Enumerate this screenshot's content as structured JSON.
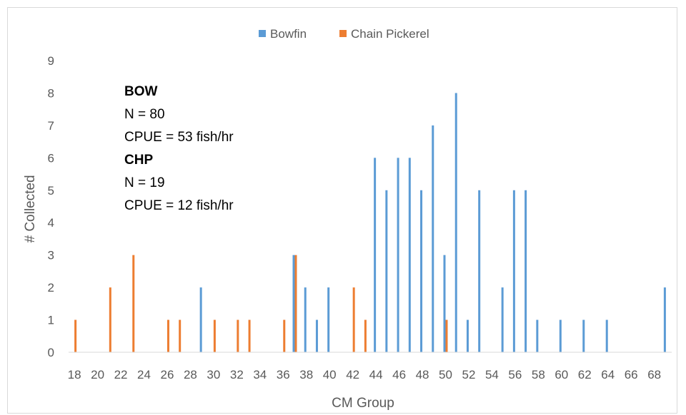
{
  "chart_data": {
    "type": "bar",
    "xlabel": "CM Group",
    "ylabel": "# Collected",
    "ylim": [
      0,
      9
    ],
    "yticks": [
      0,
      1,
      2,
      3,
      4,
      5,
      6,
      7,
      8,
      9
    ],
    "xlim": [
      17.5,
      69.5
    ],
    "xticks": [
      18,
      20,
      22,
      24,
      26,
      28,
      30,
      32,
      34,
      36,
      38,
      40,
      42,
      44,
      46,
      48,
      50,
      52,
      54,
      56,
      58,
      60,
      62,
      64,
      66,
      68
    ],
    "grid": false,
    "legend_position": "top",
    "series": [
      {
        "name": "Bowfin",
        "color": "#5b9bd5",
        "points": [
          {
            "x": 29,
            "y": 2
          },
          {
            "x": 37,
            "y": 3
          },
          {
            "x": 38,
            "y": 2
          },
          {
            "x": 39,
            "y": 1
          },
          {
            "x": 40,
            "y": 2
          },
          {
            "x": 44,
            "y": 6
          },
          {
            "x": 45,
            "y": 5
          },
          {
            "x": 46,
            "y": 6
          },
          {
            "x": 47,
            "y": 6
          },
          {
            "x": 48,
            "y": 5
          },
          {
            "x": 49,
            "y": 7
          },
          {
            "x": 50,
            "y": 3
          },
          {
            "x": 51,
            "y": 8
          },
          {
            "x": 52,
            "y": 1
          },
          {
            "x": 53,
            "y": 5
          },
          {
            "x": 55,
            "y": 2
          },
          {
            "x": 56,
            "y": 5
          },
          {
            "x": 57,
            "y": 5
          },
          {
            "x": 58,
            "y": 1
          },
          {
            "x": 60,
            "y": 1
          },
          {
            "x": 62,
            "y": 1
          },
          {
            "x": 64,
            "y": 1
          },
          {
            "x": 69,
            "y": 2
          }
        ]
      },
      {
        "name": "Chain Pickerel",
        "color": "#ed7d31",
        "points": [
          {
            "x": 18,
            "y": 1
          },
          {
            "x": 21,
            "y": 2
          },
          {
            "x": 23,
            "y": 3
          },
          {
            "x": 26,
            "y": 1
          },
          {
            "x": 27,
            "y": 1
          },
          {
            "x": 30,
            "y": 1
          },
          {
            "x": 32,
            "y": 1
          },
          {
            "x": 33,
            "y": 1
          },
          {
            "x": 36,
            "y": 1
          },
          {
            "x": 37,
            "y": 3
          },
          {
            "x": 42,
            "y": 2
          },
          {
            "x": 43,
            "y": 1
          },
          {
            "x": 50,
            "y": 1
          }
        ]
      }
    ],
    "annotation": {
      "lines": [
        {
          "text": "BOW",
          "bold": true
        },
        {
          "text": "N = 80",
          "bold": false
        },
        {
          "text": "CPUE = 53 fish/hr",
          "bold": false
        },
        {
          "text": "CHP",
          "bold": true
        },
        {
          "text": "N = 19",
          "bold": false
        },
        {
          "text": "CPUE = 12 fish/hr",
          "bold": false
        }
      ]
    }
  }
}
